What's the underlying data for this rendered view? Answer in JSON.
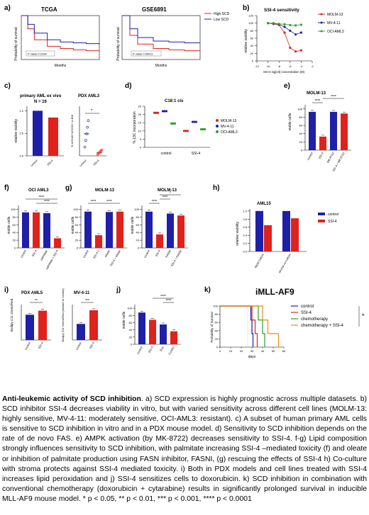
{
  "colors": {
    "blue": "#1f1fa8",
    "red": "#e0221c",
    "green": "#2ca02c",
    "orange": "#f08a1a",
    "black": "#111111"
  },
  "panels": {
    "a": {
      "letter": "a)",
      "title_left": "TCGA",
      "title_right": "GSE6891",
      "ylabel": "Probability of survival",
      "xlabel": "Months",
      "legend": [
        "High SCD",
        "Low SCD"
      ],
      "pvalue_left": "P value 0.0134",
      "pvalue_right": "P value 0.00011"
    },
    "b": {
      "letter": "b)",
      "title": "SSI-4 sensitivity",
      "ylabel": "relative viability",
      "xlabel": "SSI-4 log[10] concentration (M)",
      "xticks": [
        "-12",
        "-10",
        "-8",
        "-6",
        "-4",
        "-2"
      ],
      "yticks": [
        "0",
        "20",
        "40",
        "60",
        "80",
        "100",
        "120"
      ],
      "legend": [
        "MOLM-13",
        "MV-4-11",
        "OCI-AML3"
      ]
    },
    "c": {
      "letter": "c)",
      "title1": "primary AML ex vivo",
      "n": "N = 16",
      "ylabel1": "relative viability",
      "yticks1": [
        "0.0",
        "0.5",
        "1.0"
      ],
      "cats1": [
        "control",
        "SSI-4"
      ],
      "title2": "PDX AML3",
      "ylabel2": "% hCD45+hCD33+ in BM",
      "cats2": [
        "control",
        "SSI-4"
      ],
      "star": "*"
    },
    "d": {
      "letter": "d)",
      "title": "C18:1 cis",
      "ylabel": "% 13C incorporation",
      "yticks": [
        "0",
        "5",
        "10",
        "15",
        "20",
        "25"
      ],
      "cats": [
        "control",
        "SSI-4"
      ],
      "legend": [
        "MOLM-13",
        "MV-4-11",
        "OCI-AML3"
      ]
    },
    "e": {
      "letter": "e)",
      "title": "MOLM-13",
      "ylabel": "viable cells",
      "yticks": [
        "0",
        "20",
        "40",
        "60",
        "80",
        "100"
      ],
      "cats": [
        "control",
        "SSI-4",
        "MK-8722",
        "SSI-4 + MK-8722"
      ],
      "stars": [
        "****",
        "****"
      ]
    },
    "f": {
      "letter": "f)",
      "title": "OCI AML3",
      "ylabel": "viable cells",
      "yticks": [
        "0",
        "20",
        "40",
        "60",
        "80",
        "100"
      ],
      "cats": [
        "control",
        "SSI-4",
        "palmitate",
        "palmitate + SSI-4"
      ],
      "stars": [
        "****",
        "****"
      ]
    },
    "g": {
      "letter": "g)",
      "title1": "MOLM-13",
      "title2": "MOLM-13",
      "ylabel": "viable cells",
      "yticks": [
        "0",
        "20",
        "40",
        "60",
        "80",
        "100"
      ],
      "cats1": [
        "control",
        "SSI-4 1",
        "oleate",
        "SSI-4 + oleate"
      ],
      "cats2": [
        "control",
        "SSI-4",
        "FASNi",
        "SSI-4 + FASNi"
      ],
      "stars1": [
        "****",
        "****"
      ],
      "stars2": [
        "*",
        "****",
        "****"
      ]
    },
    "h": {
      "letter": "h)",
      "title": "AML15",
      "ylabel": "relative viability",
      "yticks": [
        "0.0",
        "0.2",
        "0.4",
        "0.6",
        "0.8",
        "1.0"
      ],
      "cats": [
        "liquid culture",
        "stroma co-culture"
      ],
      "legend": [
        "control",
        "SSI-4"
      ]
    },
    "i": {
      "letter": "i)",
      "title1": "PDX AML5",
      "title2": "MV-4-11",
      "ylabel1": "Bodipy C11 Green/Red",
      "ylabel2": "Bodipy C11 Green/Red (relative to control)",
      "cats": [
        "control",
        "SSI-4"
      ],
      "stars1": "**",
      "stars2": "***"
    },
    "j": {
      "letter": "j)",
      "ylabel": "viable cells",
      "yticks": [
        "0",
        "20",
        "40",
        "60",
        "80",
        "100"
      ],
      "cats": [
        "control",
        "SSI-4",
        "Dox",
        "Combo"
      ],
      "stars": [
        "****",
        "****"
      ]
    },
    "k": {
      "letter": "k)",
      "title": "iMLL-AF9",
      "ylabel": "Probability of Survival",
      "xlabel": "days",
      "xticks": [
        "0",
        "10",
        "20",
        "30",
        "40",
        "50",
        "60"
      ],
      "yticks": [
        "0",
        "20",
        "40",
        "60",
        "80",
        "100"
      ],
      "legend": [
        "control",
        "SSI-4",
        "chemotherapy",
        "chemotherapy + SSI-4"
      ],
      "star": "*"
    }
  },
  "caption": {
    "title": "Anti-leukemic activity of SCD inhibition",
    "body": ". a) SCD expression is highly prognostic across multiple datasets. b) SCD inhibitor SSI-4 decreases viability in vitro, but with varied sensitivity across different cell lines (MOLM-13: highly sensitive, MV-4-11: moderately sensitive, OCI-AML3: resistant). c) A subset of human primary AML cells is sensitive to SCD inhibition in vitro and in a PDX mouse model. d) Sensitivity to SCD inhibition depends on the rate of de novo FAS. e) AMPK activation (by MK-8722) decreases sensitivity to SSI-4. f-g) Lipid composition strongly influences sensitivity to SCD inhibition, with palmitate increasing SSI-4 –mediated toxicity (f) and oleate or inhibition of palmitate production using FASN inhibitor, FASNI, (g) rescuing the effects of SSI-4 h) Co-culture with stroma protects against SSI-4 mediated toxicity. i) Both in PDX models and cell lines treated with SSI-4 increases lipid peroxidation and j) SSI-4 sensitizes cells to doxorubicin. k) SCD inhibition in combination with conventional chemotherapy (doxorubicin + cytarabine) results in significantly prolonged survival in inducible MLL-AF9 mouse model. * p < 0.05, ** p < 0.01, *** p < 0.001, **** p < 0.0001"
  },
  "chart_data": [
    {
      "type": "line",
      "panel": "a-TCGA",
      "title": "TCGA",
      "xlabel": "Months",
      "ylabel": "Probability of survival",
      "series": [
        {
          "name": "High SCD",
          "x": [
            0,
            5,
            10,
            20,
            30,
            40,
            50,
            60
          ],
          "y": [
            100,
            70,
            45,
            30,
            25,
            22,
            20,
            20
          ]
        },
        {
          "name": "Low SCD",
          "x": [
            0,
            5,
            10,
            20,
            30,
            40,
            50,
            60
          ],
          "y": [
            100,
            80,
            60,
            45,
            40,
            38,
            36,
            35
          ]
        }
      ]
    },
    {
      "type": "line",
      "panel": "a-GSE6891",
      "title": "GSE6891",
      "xlabel": "Months",
      "ylabel": "Probability of survival",
      "series": [
        {
          "name": "High SCD",
          "x": [
            0,
            10,
            20,
            40,
            60,
            80,
            100
          ],
          "y": [
            100,
            55,
            35,
            25,
            22,
            20,
            20
          ]
        },
        {
          "name": "Low SCD",
          "x": [
            0,
            10,
            20,
            40,
            60,
            80,
            100
          ],
          "y": [
            100,
            70,
            50,
            42,
            40,
            38,
            38
          ]
        }
      ]
    },
    {
      "type": "line",
      "panel": "b",
      "title": "SSI-4 sensitivity",
      "xlabel": "SSI-4 log[10] concentration (M)",
      "ylabel": "relative viability",
      "xlim": [
        -12,
        -2
      ],
      "ylim": [
        0,
        120
      ],
      "series": [
        {
          "name": "MOLM-13",
          "x": [
            -10,
            -9,
            -8,
            -7,
            -6,
            -5,
            -4
          ],
          "y": [
            100,
            98,
            95,
            75,
            35,
            25,
            28
          ]
        },
        {
          "name": "MV-4-11",
          "x": [
            -10,
            -9,
            -8,
            -7,
            -6,
            -5,
            -4
          ],
          "y": [
            100,
            99,
            97,
            90,
            80,
            70,
            75
          ]
        },
        {
          "name": "OCI-AML3",
          "x": [
            -10,
            -9,
            -8,
            -7,
            -6,
            -5,
            -4
          ],
          "y": [
            100,
            100,
            98,
            97,
            95,
            94,
            96
          ]
        }
      ]
    },
    {
      "type": "bar",
      "panel": "c-primary",
      "categories": [
        "control",
        "SSI-4"
      ],
      "values": [
        1.0,
        0.85
      ],
      "ylim": [
        0,
        1.1
      ]
    },
    {
      "type": "scatter",
      "panel": "c-PDX",
      "categories": [
        "control",
        "SSI-4"
      ],
      "values": [
        20,
        3
      ]
    },
    {
      "type": "scatter",
      "panel": "d",
      "categories": [
        "control",
        "SSI-4"
      ],
      "series": [
        {
          "name": "MOLM-13",
          "values": [
            21,
            10
          ]
        },
        {
          "name": "MV-4-11",
          "values": [
            22,
            15.5
          ]
        },
        {
          "name": "OCI-AML3",
          "values": [
            14.5,
            11
          ]
        }
      ],
      "ylim": [
        0,
        25
      ]
    },
    {
      "type": "bar",
      "panel": "e",
      "categories": [
        "control",
        "SSI-4",
        "MK-8722",
        "SSI-4 + MK-8722"
      ],
      "values": [
        93,
        33,
        93,
        89
      ],
      "ylim": [
        0,
        110
      ]
    },
    {
      "type": "bar",
      "panel": "f",
      "categories": [
        "control",
        "SSI-4",
        "palmitate",
        "palmitate + SSI-4"
      ],
      "values": [
        92,
        92,
        90,
        25
      ],
      "ylim": [
        0,
        110
      ]
    },
    {
      "type": "bar",
      "panel": "g-oleate",
      "categories": [
        "control",
        "SSI-4 1",
        "oleate",
        "SSI-4 + oleate"
      ],
      "values": [
        94,
        33,
        93,
        94
      ],
      "ylim": [
        0,
        110
      ]
    },
    {
      "type": "bar",
      "panel": "g-FASNi",
      "categories": [
        "control",
        "SSI-4",
        "FASNi",
        "SSI-4 + FASNi"
      ],
      "values": [
        94,
        35,
        89,
        84
      ],
      "ylim": [
        0,
        110
      ]
    },
    {
      "type": "bar",
      "panel": "h",
      "categories": [
        "liquid culture",
        "stroma co-culture"
      ],
      "series": [
        {
          "name": "control",
          "values": [
            1.0,
            1.0
          ]
        },
        {
          "name": "SSI-4",
          "values": [
            0.65,
            0.82
          ]
        }
      ],
      "ylim": [
        0,
        1.05
      ]
    },
    {
      "type": "bar",
      "panel": "i-PDX",
      "categories": [
        "control",
        "SSI-4"
      ],
      "values": [
        0.5,
        0.58
      ],
      "ylim": [
        0,
        0.7
      ]
    },
    {
      "type": "bar",
      "panel": "i-MV411",
      "categories": [
        "control",
        "SSI-4"
      ],
      "values": [
        1.0,
        1.85
      ],
      "ylim": [
        0,
        2.2
      ]
    },
    {
      "type": "bar",
      "panel": "j",
      "categories": [
        "control",
        "SSI-4",
        "Dox",
        "Combo"
      ],
      "values": [
        88,
        68,
        55,
        36
      ],
      "ylim": [
        0,
        110
      ]
    },
    {
      "type": "line",
      "panel": "k",
      "title": "iMLL-AF9",
      "xlabel": "days",
      "ylabel": "Probability of Survival",
      "xlim": [
        0,
        60
      ],
      "ylim": [
        0,
        100
      ],
      "series": [
        {
          "name": "control",
          "x": [
            0,
            28,
            29,
            30,
            31
          ],
          "y": [
            100,
            100,
            66,
            33,
            0
          ]
        },
        {
          "name": "SSI-4",
          "x": [
            0,
            28,
            30,
            33,
            35
          ],
          "y": [
            100,
            100,
            66,
            33,
            0
          ]
        },
        {
          "name": "chemotherapy",
          "x": [
            0,
            30,
            36,
            40,
            42
          ],
          "y": [
            100,
            100,
            66,
            33,
            0
          ]
        },
        {
          "name": "chemotherapy + SSI-4",
          "x": [
            0,
            33,
            40,
            45,
            55
          ],
          "y": [
            100,
            100,
            66,
            33,
            0
          ]
        }
      ]
    }
  ]
}
